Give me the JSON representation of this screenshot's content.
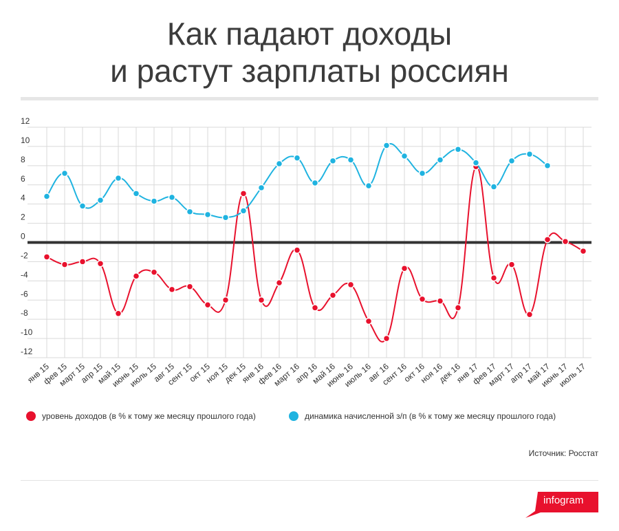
{
  "title": {
    "line1": "Как падают доходы",
    "line2": "и растут зарплаты россиян"
  },
  "chart_data": {
    "type": "line",
    "categories": [
      "янв 15",
      "фев 15",
      "март 15",
      "апр 15",
      "май 15",
      "июнь 15",
      "июль 15",
      "авг 15",
      "сент 15",
      "окт 15",
      "ноя 15",
      "дек 15",
      "янв 16",
      "фев 16",
      "март 16",
      "апр 16",
      "май 16",
      "июнь 16",
      "июль 16",
      "авг 16",
      "сент 16",
      "окт 16",
      "ноя 16",
      "дек 16",
      "янв 17",
      "фев 17",
      "март 17",
      "апр 17",
      "май 17",
      "июнь 17",
      "июль 17"
    ],
    "series": [
      {
        "name": "уровень доходов (в % к тому же месяцу прошлого года)",
        "color": "#e8112d",
        "values": [
          -1.5,
          -2.3,
          -2.0,
          -2.2,
          -7.4,
          -3.5,
          -3.1,
          -4.9,
          -4.6,
          -6.5,
          -6.0,
          5.1,
          -6.0,
          -4.2,
          -0.8,
          -6.8,
          -5.5,
          -4.4,
          -8.2,
          -10.0,
          -2.7,
          -5.9,
          -6.1,
          -6.8,
          7.9,
          -3.7,
          -2.3,
          -7.5,
          0.3,
          0.1,
          -0.9
        ]
      },
      {
        "name": "динамика начисленной з/п (в % к тому же месяцу прошлого года)",
        "color": "#1fb3e0",
        "values": [
          4.8,
          7.2,
          3.8,
          4.4,
          6.7,
          5.1,
          4.3,
          4.7,
          3.2,
          2.9,
          2.6,
          3.3,
          5.7,
          8.2,
          8.8,
          6.2,
          8.5,
          8.6,
          5.9,
          10.1,
          9.0,
          7.2,
          8.6,
          9.7,
          8.3,
          5.8,
          8.5,
          9.2,
          8.0,
          null,
          null
        ]
      }
    ],
    "yticks": [
      "12",
      "10",
      "8",
      "6",
      "4",
      "2",
      "0",
      "-2",
      "-4",
      "-6",
      "-8",
      "-10",
      "-12"
    ],
    "ylim": [
      -12,
      12
    ],
    "grid": true,
    "legend": "bottom",
    "source": "Источник: Росстат"
  },
  "logo": {
    "text": "infogram",
    "color": "#e8112d"
  }
}
